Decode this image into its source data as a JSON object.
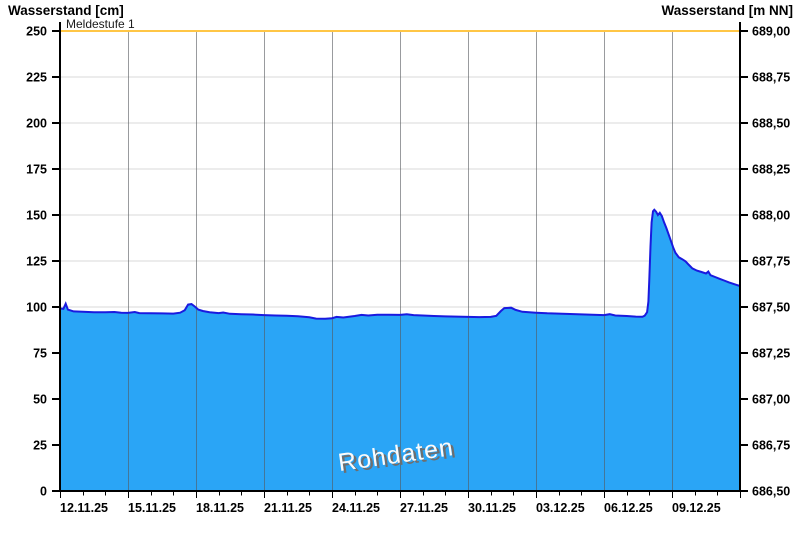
{
  "titles": {
    "left": "Wasserstand [cm]",
    "right": "Wasserstand [m NN]"
  },
  "watermark": "Rohdaten",
  "chart_data": {
    "type": "area",
    "title": "",
    "series_name": "Rohdaten",
    "x_axis": {
      "start_date": "12.11.25",
      "range_days": [
        0,
        30
      ],
      "minor_tick_interval_days": 1,
      "major_tick_interval_days": 3,
      "labels": [
        "12.11.25",
        "15.11.25",
        "18.11.25",
        "21.11.25",
        "24.11.25",
        "27.11.25",
        "30.11.25",
        "03.12.25",
        "06.12.25",
        "09.12.25"
      ]
    },
    "y_left": {
      "label": "Wasserstand [cm]",
      "min": 0,
      "max": 250,
      "step": 25,
      "ticks": [
        "0",
        "25",
        "50",
        "75",
        "100",
        "125",
        "150",
        "175",
        "200",
        "225",
        "250"
      ]
    },
    "y_right": {
      "label": "Wasserstand [m NN]",
      "min": 686.5,
      "max": 689.0,
      "step": 0.25,
      "ticks": [
        "686,50",
        "686,75",
        "687,00",
        "687,25",
        "687,50",
        "687,75",
        "688,00",
        "688,25",
        "688,50",
        "688,75",
        "689,00"
      ]
    },
    "threshold": {
      "label": "Meldestufe 1",
      "value_cm": 250,
      "color": "#FFC646"
    },
    "grid": {
      "horizontal": true,
      "vertical": true
    },
    "points_day_cm": [
      [
        0,
        99.2
      ],
      [
        0.15,
        99.0
      ],
      [
        0.25,
        101.8
      ],
      [
        0.35,
        98.6
      ],
      [
        0.6,
        97.6
      ],
      [
        1,
        97.4
      ],
      [
        1.5,
        97.2
      ],
      [
        2,
        97.1
      ],
      [
        2.4,
        97.3
      ],
      [
        2.7,
        96.9
      ],
      [
        3,
        96.8
      ],
      [
        3.3,
        97.3
      ],
      [
        3.5,
        96.7
      ],
      [
        4,
        96.6
      ],
      [
        4.5,
        96.5
      ],
      [
        5,
        96.4
      ],
      [
        5.3,
        96.9
      ],
      [
        5.5,
        98.2
      ],
      [
        5.65,
        101.3
      ],
      [
        5.8,
        101.6
      ],
      [
        5.95,
        100.2
      ],
      [
        6.1,
        98.6
      ],
      [
        6.3,
        97.8
      ],
      [
        6.6,
        97.2
      ],
      [
        7,
        96.7
      ],
      [
        7.2,
        97.0
      ],
      [
        7.5,
        96.3
      ],
      [
        8,
        96.1
      ],
      [
        8.5,
        95.9
      ],
      [
        9,
        95.6
      ],
      [
        9.5,
        95.4
      ],
      [
        10,
        95.2
      ],
      [
        10.5,
        95.0
      ],
      [
        11,
        94.4
      ],
      [
        11.3,
        93.7
      ],
      [
        11.7,
        93.6
      ],
      [
        12,
        93.9
      ],
      [
        12.2,
        94.6
      ],
      [
        12.5,
        94.3
      ],
      [
        13,
        95.1
      ],
      [
        13.3,
        95.7
      ],
      [
        13.6,
        95.4
      ],
      [
        14,
        95.8
      ],
      [
        14.5,
        95.8
      ],
      [
        15,
        95.7
      ],
      [
        15.3,
        96.1
      ],
      [
        15.6,
        95.6
      ],
      [
        16,
        95.4
      ],
      [
        16.5,
        95.1
      ],
      [
        17,
        94.9
      ],
      [
        17.5,
        94.8
      ],
      [
        18,
        94.6
      ],
      [
        18.5,
        94.5
      ],
      [
        19,
        94.6
      ],
      [
        19.25,
        95.2
      ],
      [
        19.45,
        97.8
      ],
      [
        19.6,
        99.4
      ],
      [
        19.9,
        99.6
      ],
      [
        20.1,
        98.4
      ],
      [
        20.4,
        97.4
      ],
      [
        21,
        96.9
      ],
      [
        21.5,
        96.6
      ],
      [
        22,
        96.4
      ],
      [
        22.5,
        96.2
      ],
      [
        23,
        96.0
      ],
      [
        23.5,
        95.8
      ],
      [
        24,
        95.6
      ],
      [
        24.25,
        96.1
      ],
      [
        24.5,
        95.4
      ],
      [
        25,
        95.1
      ],
      [
        25.4,
        94.8
      ],
      [
        25.7,
        94.7
      ],
      [
        25.8,
        95.3
      ],
      [
        25.9,
        97.2
      ],
      [
        25.96,
        103
      ],
      [
        26.0,
        115
      ],
      [
        26.05,
        133
      ],
      [
        26.1,
        146
      ],
      [
        26.16,
        152.0
      ],
      [
        26.22,
        152.8
      ],
      [
        26.3,
        151.8
      ],
      [
        26.38,
        150.0
      ],
      [
        26.46,
        151.2
      ],
      [
        26.55,
        149.5
      ],
      [
        26.65,
        146
      ],
      [
        26.75,
        143
      ],
      [
        26.85,
        139.5
      ],
      [
        26.95,
        136
      ],
      [
        27.05,
        132.5
      ],
      [
        27.15,
        129.5
      ],
      [
        27.3,
        127
      ],
      [
        27.45,
        126
      ],
      [
        27.6,
        124.8
      ],
      [
        27.75,
        122.8
      ],
      [
        27.9,
        121
      ],
      [
        28.1,
        119.8
      ],
      [
        28.3,
        119
      ],
      [
        28.5,
        118.2
      ],
      [
        28.6,
        119.3
      ],
      [
        28.7,
        117.3
      ],
      [
        28.9,
        116.3
      ],
      [
        29.1,
        115.3
      ],
      [
        29.3,
        114.4
      ],
      [
        29.5,
        113.4
      ],
      [
        29.7,
        112.6
      ],
      [
        29.85,
        112.0
      ],
      [
        30,
        111.4
      ]
    ],
    "colors": {
      "area_fill": "#2AA5F6",
      "area_stroke": "#1A1ADF",
      "grid_horizontal": "#DADADA",
      "grid_vertical": "#55595E",
      "axis": "#000000",
      "threshold": "#FFC646",
      "background": "#FFFFFF"
    }
  }
}
